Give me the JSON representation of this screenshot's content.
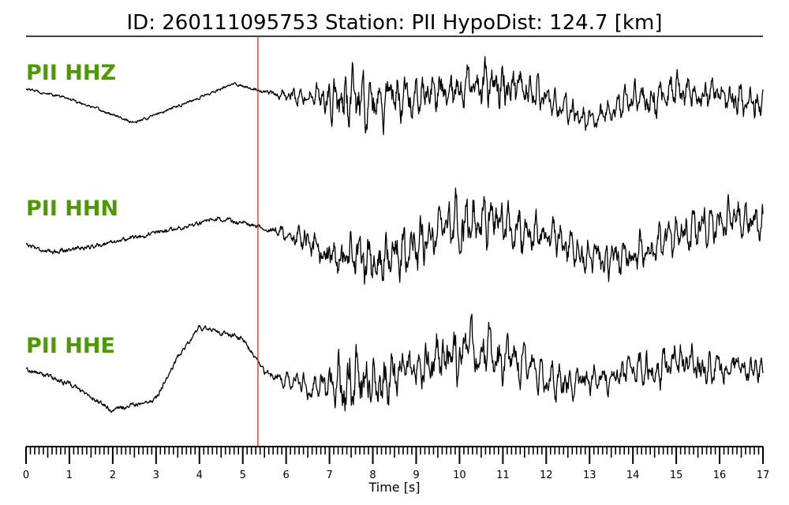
{
  "chart_data": {
    "type": "line",
    "title": "ID: 260111095753   Station: PII   HypoDist:   124.7 [km]",
    "xlabel": "Time [s]",
    "ylabel": "",
    "xlim": [
      0,
      17
    ],
    "x_ticks": [
      0,
      1,
      2,
      3,
      4,
      5,
      6,
      7,
      8,
      9,
      10,
      11,
      12,
      13,
      14,
      15,
      16,
      17
    ],
    "pick_time": 5.35,
    "pick_color": "#d62728",
    "label_color": "#4d9900",
    "trace_color": "#000000",
    "grid": false,
    "series": [
      {
        "name": "PII HHZ",
        "envelope": [
          [
            0.0,
            0.05
          ],
          [
            5.3,
            0.06
          ],
          [
            6.5,
            0.25
          ],
          [
            7.2,
            0.55
          ],
          [
            7.4,
            0.9
          ],
          [
            8.2,
            0.6
          ],
          [
            9.5,
            0.45
          ],
          [
            10.5,
            0.55
          ],
          [
            11.0,
            0.6
          ],
          [
            12.0,
            0.4
          ],
          [
            13.0,
            0.3
          ],
          [
            14.0,
            0.45
          ],
          [
            15.0,
            0.45
          ],
          [
            16.0,
            0.4
          ],
          [
            17.0,
            0.45
          ]
        ],
        "trend": [
          [
            0.0,
            0.25
          ],
          [
            1.0,
            0.05
          ],
          [
            2.5,
            -0.45
          ],
          [
            3.5,
            -0.1
          ],
          [
            4.8,
            0.35
          ],
          [
            6.0,
            0.1
          ],
          [
            8.0,
            -0.05
          ],
          [
            10.0,
            0.3
          ],
          [
            11.0,
            0.35
          ],
          [
            12.0,
            0.05
          ],
          [
            13.0,
            -0.4
          ],
          [
            14.0,
            -0.05
          ],
          [
            15.0,
            0.2
          ],
          [
            17.0,
            0.0
          ]
        ]
      },
      {
        "name": "PII HHN",
        "envelope": [
          [
            0.0,
            0.08
          ],
          [
            5.3,
            0.08
          ],
          [
            6.0,
            0.15
          ],
          [
            6.6,
            0.4
          ],
          [
            7.0,
            0.5
          ],
          [
            8.0,
            0.55
          ],
          [
            9.0,
            0.55
          ],
          [
            10.0,
            0.65
          ],
          [
            11.0,
            0.6
          ],
          [
            12.0,
            0.4
          ],
          [
            13.0,
            0.4
          ],
          [
            14.0,
            0.45
          ],
          [
            15.0,
            0.45
          ],
          [
            16.0,
            0.5
          ],
          [
            17.0,
            0.35
          ]
        ],
        "trend": [
          [
            0.0,
            -0.1
          ],
          [
            0.5,
            -0.25
          ],
          [
            1.5,
            -0.15
          ],
          [
            3.0,
            0.1
          ],
          [
            4.5,
            0.35
          ],
          [
            5.5,
            0.2
          ],
          [
            6.5,
            -0.05
          ],
          [
            7.5,
            -0.45
          ],
          [
            8.5,
            -0.3
          ],
          [
            10.0,
            0.3
          ],
          [
            11.0,
            0.25
          ],
          [
            12.5,
            -0.1
          ],
          [
            13.5,
            -0.45
          ],
          [
            14.5,
            -0.1
          ],
          [
            16.0,
            0.35
          ],
          [
            17.0,
            0.3
          ]
        ]
      },
      {
        "name": "PII HHE",
        "envelope": [
          [
            0.0,
            0.08
          ],
          [
            5.3,
            0.08
          ],
          [
            6.0,
            0.15
          ],
          [
            6.8,
            0.3
          ],
          [
            7.3,
            0.8
          ],
          [
            8.0,
            0.6
          ],
          [
            9.0,
            0.45
          ],
          [
            10.0,
            0.55
          ],
          [
            11.0,
            0.55
          ],
          [
            12.0,
            0.4
          ],
          [
            13.0,
            0.3
          ],
          [
            14.0,
            0.35
          ],
          [
            15.0,
            0.4
          ],
          [
            16.0,
            0.35
          ],
          [
            17.0,
            0.3
          ]
        ],
        "trend": [
          [
            0.0,
            0.1
          ],
          [
            1.0,
            -0.15
          ],
          [
            2.0,
            -0.6
          ],
          [
            3.0,
            -0.4
          ],
          [
            3.5,
            0.3
          ],
          [
            4.0,
            0.8
          ],
          [
            5.0,
            0.6
          ],
          [
            5.5,
            0.05
          ],
          [
            6.5,
            -0.2
          ],
          [
            8.0,
            -0.15
          ],
          [
            9.5,
            0.25
          ],
          [
            10.5,
            0.35
          ],
          [
            11.5,
            0.15
          ],
          [
            12.5,
            -0.2
          ],
          [
            13.5,
            0.0
          ],
          [
            15.0,
            0.2
          ],
          [
            16.0,
            0.1
          ],
          [
            17.0,
            0.15
          ]
        ]
      }
    ]
  }
}
